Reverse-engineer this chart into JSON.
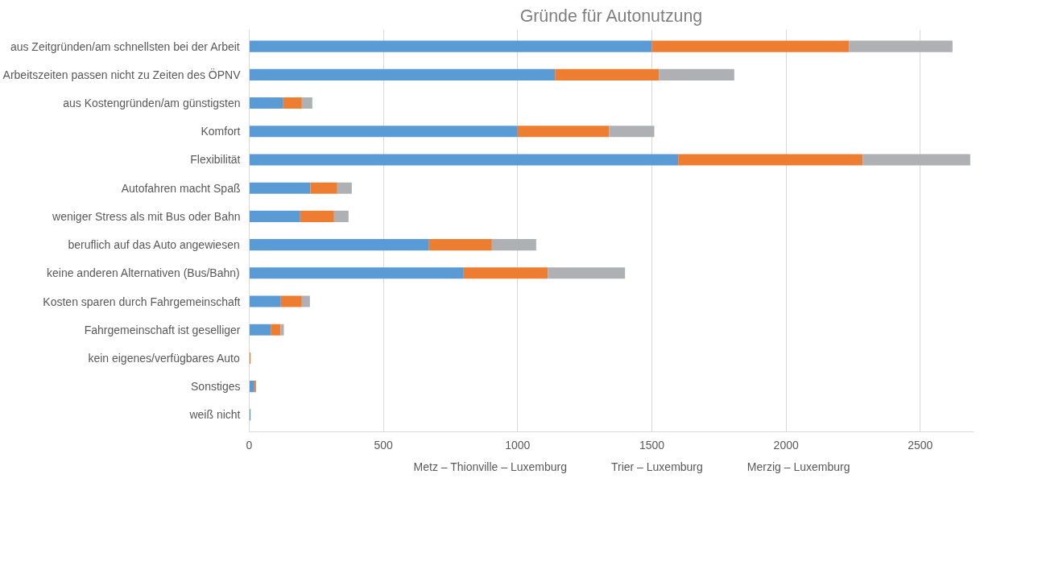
{
  "chart_data": {
    "type": "bar",
    "orientation": "horizontal",
    "stacked": true,
    "title": "Gründe für Autonutzung",
    "categories": [
      "aus Zeitgründen/am schnellsten bei der Arbeit",
      "Arbeitszeiten passen nicht zu Zeiten des ÖPNV",
      "aus Kostengründen/am günstigsten",
      "Komfort",
      "Flexibilität",
      "Autofahren macht Spaß",
      "weniger Stress als mit Bus oder Bahn",
      "beruflich auf das Auto angewiesen",
      "keine anderen Alternativen (Bus/Bahn)",
      "Kosten sparen durch Fahrgemeinschaft",
      "Fahrgemeinschaft ist geselliger",
      "kein eigenes/verfügbares Auto",
      "Sonstiges",
      "weiß nicht"
    ],
    "series": [
      {
        "name": "Metz – Thionville – Luxemburg",
        "color": "#5b9bd5",
        "values": [
          1500,
          1139,
          127,
          1000,
          1598,
          228,
          190,
          670,
          799,
          118,
          80,
          0,
          19,
          5
        ]
      },
      {
        "name": "Trier – Luxemburg",
        "color": "#ed7d31",
        "values": [
          735,
          387,
          69,
          341,
          687,
          100,
          126,
          234,
          313,
          78,
          37,
          5,
          6,
          0
        ]
      },
      {
        "name": "Merzig – Luxemburg",
        "color": "#afb0b3",
        "values": [
          385,
          281,
          39,
          168,
          401,
          54,
          54,
          165,
          288,
          30,
          12,
          0,
          null,
          0
        ]
      }
    ],
    "xlim": [
      0,
      2700
    ],
    "xticks": [
      0,
      500,
      1000,
      1500,
      2000,
      2500
    ],
    "grid": "x",
    "legend": "bottom"
  }
}
